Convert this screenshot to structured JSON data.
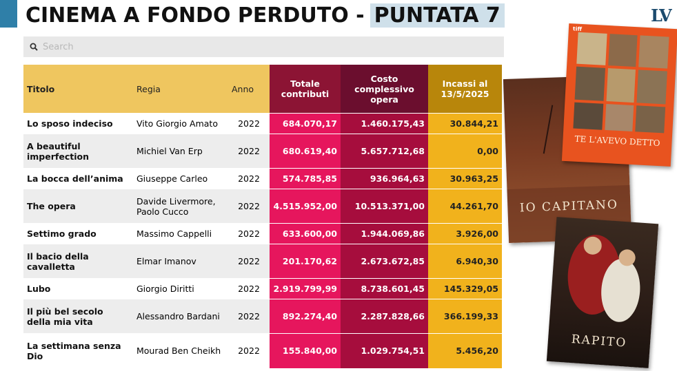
{
  "header": {
    "title_main": "CINEMA A FONDO PERDUTO -",
    "title_highlight": "PUNTATA 7",
    "logo": "LV"
  },
  "search": {
    "placeholder": "Search",
    "icon": "search-icon"
  },
  "table": {
    "columns": [
      "Titolo",
      "Regia",
      "Anno",
      "Totale contributi",
      "Costo complessivo opera",
      "Incassi al 13/5/2025"
    ],
    "rows": [
      [
        "Lo sposo indeciso",
        "Vito Giorgio Amato",
        "2022",
        "684.070,17",
        "1.460.175,43",
        "30.844,21"
      ],
      [
        "A beautiful imperfection",
        "Michiel Van Erp",
        "2022",
        "680.619,40",
        "5.657.712,68",
        "0,00"
      ],
      [
        "La bocca dell’anima",
        "Giuseppe Carleo",
        "2022",
        "574.785,85",
        "936.964,63",
        "30.963,25"
      ],
      [
        "The opera",
        "Davide Livermore, Paolo Cucco",
        "2022",
        "4.515.952,00",
        "10.513.371,00",
        "44.261,70"
      ],
      [
        "Settimo grado",
        "Massimo Cappelli",
        "2022",
        "633.600,00",
        "1.944.069,86",
        "3.926,00"
      ],
      [
        "Il bacio della cavalletta",
        "Elmar Imanov",
        "2022",
        "201.170,62",
        "2.673.672,85",
        "6.940,30"
      ],
      [
        "Lubo",
        "Giorgio Diritti",
        "2022",
        "2.919.799,99",
        "8.738.601,45",
        "145.329,05"
      ],
      [
        "Il più bel secolo della mia vita",
        "Alessandro Bardani",
        "2022",
        "892.274,40",
        "2.287.828,66",
        "366.199,33"
      ],
      [
        "La settimana senza Dio",
        "Mourad Ben Cheikh",
        "2022",
        "155.840,00",
        "1.029.754,51",
        "5.456,20"
      ]
    ]
  },
  "posters": [
    {
      "title": "TE L'AVEVO DETTO",
      "top_text": "tiff"
    },
    {
      "title": "IO CAPITANO",
      "top_text": ""
    },
    {
      "title": "RAPITO",
      "top_text": ""
    }
  ],
  "colors": {
    "header_yellow": "#efc65f",
    "contributi": "#e6165d",
    "costo": "#a60d3d",
    "incassi": "#f1b21c"
  }
}
